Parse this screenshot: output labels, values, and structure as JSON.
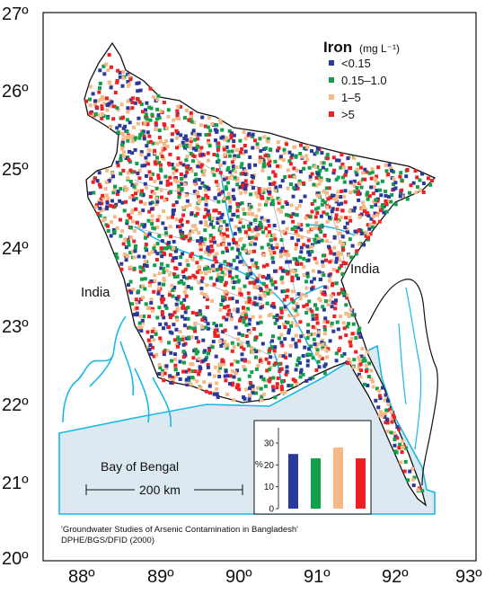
{
  "map": {
    "legend": {
      "title": "Iron",
      "unit": "(mg L⁻¹)",
      "classes": [
        {
          "label": "<0.15",
          "color": "#2a3a9c"
        },
        {
          "label": "0.15–1.0",
          "color": "#10a04a"
        },
        {
          "label": "1–5",
          "color": "#f6b885"
        },
        {
          "label": ">5",
          "color": "#ee2024"
        }
      ]
    },
    "axes": {
      "lat_labels": [
        "27º",
        "26º",
        "25º",
        "24º",
        "23º",
        "22º",
        "21º",
        "20º"
      ],
      "lon_labels": [
        "88º",
        "89º",
        "90º",
        "91º",
        "92º",
        "93º"
      ]
    },
    "labels": {
      "india_west": "India",
      "india_east": "India",
      "bay": "Bay of Bengal",
      "scale": "200 km"
    },
    "source": {
      "line1": "'Groundwater Studies of Arsenic Contamination in Bangladesh'",
      "line2": "DPHE/BGS/DFID (2000)"
    },
    "colors": {
      "sea": "#dce9f1",
      "coast": "#18b8e8",
      "land": "#ffffff",
      "border": "#111111"
    }
  },
  "chart_data": {
    "type": "bar",
    "categories": [
      "<0.15",
      "0.15–1.0",
      "1–5",
      ">5"
    ],
    "values": [
      25,
      23,
      28,
      23
    ],
    "colors": [
      "#2a3a9c",
      "#10a04a",
      "#f6b885",
      "#ee2024"
    ],
    "ylabel": "%",
    "yticks": [
      0,
      10,
      20,
      30
    ],
    "ylim": [
      0,
      37
    ]
  }
}
